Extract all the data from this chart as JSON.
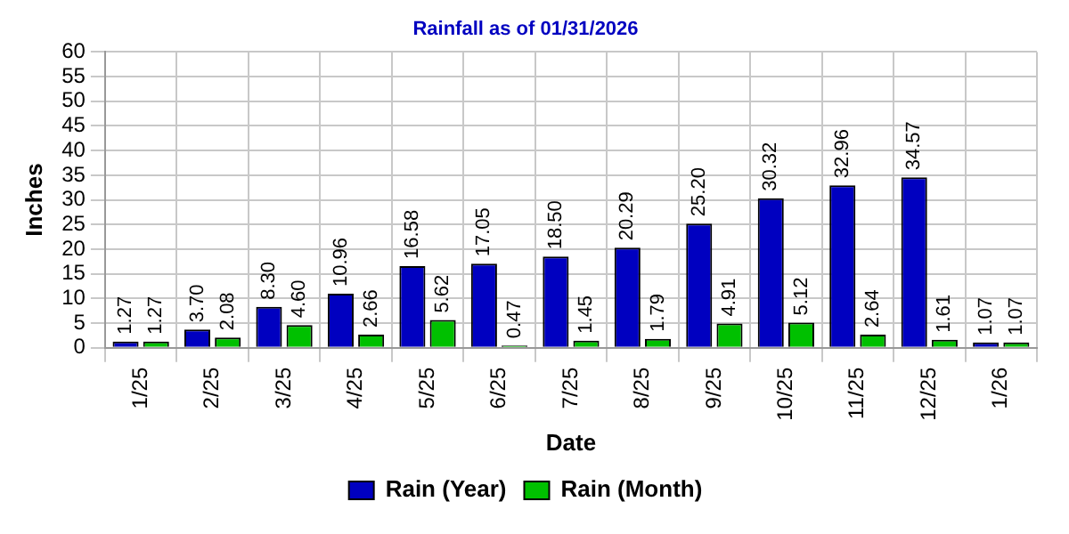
{
  "chart_data": {
    "type": "bar",
    "title": "Rainfall as of 01/31/2026",
    "xlabel": "Date",
    "ylabel": "Inches",
    "categories": [
      "1/25",
      "2/25",
      "3/25",
      "4/25",
      "5/25",
      "6/25",
      "7/25",
      "8/25",
      "9/25",
      "10/25",
      "11/25",
      "12/25",
      "1/26"
    ],
    "series": [
      {
        "name": "Rain (Year)",
        "color": "#0000c0",
        "values": [
          1.27,
          3.7,
          8.3,
          10.96,
          16.58,
          17.05,
          18.5,
          20.29,
          25.2,
          30.32,
          32.96,
          34.57,
          1.07
        ],
        "value_labels": [
          "1.27",
          "3.70",
          "8.30",
          "10.96",
          "16.58",
          "17.05",
          "18.50",
          "20.29",
          "25.20",
          "30.32",
          "32.96",
          "34.57",
          "1.07"
        ]
      },
      {
        "name": "Rain (Month)",
        "color": "#00c000",
        "values": [
          1.27,
          2.08,
          4.6,
          2.66,
          5.62,
          0.47,
          1.45,
          1.79,
          4.91,
          5.12,
          2.64,
          1.61,
          1.07
        ],
        "value_labels": [
          "1.27",
          "2.08",
          "4.60",
          "2.66",
          "5.62",
          "0.47",
          "1.45",
          "1.79",
          "4.91",
          "5.12",
          "2.64",
          "1.61",
          "1.07"
        ]
      }
    ],
    "ylim": [
      0,
      60
    ],
    "yticks": [
      0,
      5,
      10,
      15,
      20,
      25,
      30,
      35,
      40,
      45,
      50,
      55,
      60
    ],
    "grid": true,
    "legend": "bottom"
  }
}
